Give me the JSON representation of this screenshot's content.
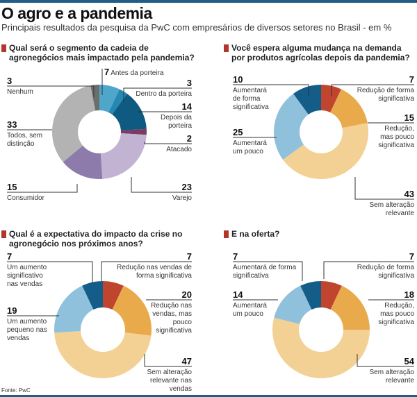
{
  "header": {
    "title": "O agro e a pandemia",
    "subtitle": "Principais resultados da pesquisa da PwC com empresários de diversos setores no Brasil - em %"
  },
  "source": "Fonte: PwC",
  "chart_data": [
    {
      "type": "pie",
      "donut": true,
      "question": "Qual será o segmento da cadeia de agronegócios mais impactado pela pandemia?",
      "slices": [
        {
          "label": "Antes da porteira",
          "value": 7,
          "color": "#4ea6cb"
        },
        {
          "label": "Dentro da porteira",
          "value": 3,
          "color": "#2389b2"
        },
        {
          "label": "Depois da porteira",
          "value": 14,
          "color": "#0f5a80"
        },
        {
          "label": "Atacado",
          "value": 2,
          "color": "#7b3b63"
        },
        {
          "label": "Varejo",
          "value": 23,
          "color": "#c2b3d3"
        },
        {
          "label": "Consumidor",
          "value": 15,
          "color": "#8d7cab"
        },
        {
          "label": "Todos, sem distinção",
          "value": 33,
          "color": "#b3b3b3"
        },
        {
          "label": "Nenhum",
          "value": 3,
          "color": "#6b6f6a"
        }
      ]
    },
    {
      "type": "pie",
      "donut": true,
      "question": "Você espera alguma mudança na demanda por produtos agrícolas depois da pandemia?",
      "slices": [
        {
          "label": "Redução de forma significativa",
          "value": 7,
          "color": "#c0452e"
        },
        {
          "label": "Redução, mas pouco significativa",
          "value": 15,
          "color": "#e9aa4c"
        },
        {
          "label": "Sem alteração relevante",
          "value": 43,
          "color": "#f3d093"
        },
        {
          "label": "Aumentará um pouco",
          "value": 25,
          "color": "#90c1dc"
        },
        {
          "label": "Aumentará de forma significativa",
          "value": 10,
          "color": "#135d88"
        }
      ]
    },
    {
      "type": "pie",
      "donut": true,
      "question": "Qual é a expectativa do impacto da crise no agronegócio nos próximos anos?",
      "slices": [
        {
          "label": "Redução nas vendas de forma significativa",
          "value": 7,
          "color": "#c0452e"
        },
        {
          "label": "Redução nas vendas, mas pouco significativa",
          "value": 20,
          "color": "#e9aa4c"
        },
        {
          "label": "Sem alteração relevante nas vendas",
          "value": 47,
          "color": "#f3d093"
        },
        {
          "label": "Um aumento pequeno nas vendas",
          "value": 19,
          "color": "#90c1dc"
        },
        {
          "label": "Um aumento significativo nas vendas",
          "value": 7,
          "color": "#135d88"
        }
      ]
    },
    {
      "type": "pie",
      "donut": true,
      "question": "E na oferta?",
      "slices": [
        {
          "label": "Redução de forma significativa",
          "value": 7,
          "color": "#c0452e"
        },
        {
          "label": "Redução, mas pouco significativa",
          "value": 18,
          "color": "#e9aa4c"
        },
        {
          "label": "Sem alteração relevante",
          "value": 54,
          "color": "#f3d093"
        },
        {
          "label": "Aumentará um pouco",
          "value": 14,
          "color": "#90c1dc"
        },
        {
          "label": "Aumentará de forma significativa",
          "value": 7,
          "color": "#135d88"
        }
      ]
    }
  ]
}
